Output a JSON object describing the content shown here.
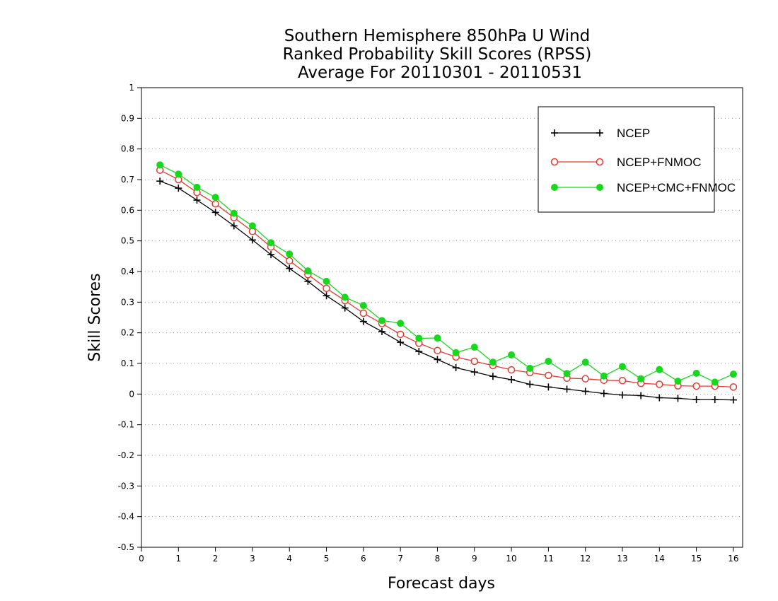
{
  "chart_data": {
    "type": "line",
    "title": [
      "Southern Hemisphere 850hPa U Wind",
      "Ranked Probability Skill Scores (RPSS)",
      "Average For 20110301 - 20110531"
    ],
    "xlabel": "Forecast days",
    "ylabel": "Skill Scores",
    "xlim": [
      0,
      16.25
    ],
    "ylim": [
      -0.5,
      1
    ],
    "xticks": [
      0,
      1,
      2,
      3,
      4,
      5,
      6,
      7,
      8,
      9,
      10,
      11,
      12,
      13,
      14,
      15,
      16
    ],
    "yticks": [
      -0.5,
      -0.4,
      -0.3,
      -0.2,
      -0.1,
      0,
      0.1,
      0.2,
      0.3,
      0.4,
      0.5,
      0.6,
      0.7,
      0.8,
      0.9,
      1
    ],
    "ytick_labels": [
      "-0.5",
      "-0.4",
      "-0.3",
      "-0.2",
      "-0.1",
      "0",
      "0.1",
      "0.2",
      "0.3",
      "0.4",
      "0.5",
      "0.6",
      "0.7",
      "0.8",
      "0.9",
      "1"
    ],
    "grid": "horizontal-dotted",
    "legend_position": "top-right",
    "x": [
      0.5,
      1,
      1.5,
      2,
      2.5,
      3,
      3.5,
      4,
      4.5,
      5,
      5.5,
      6,
      6.5,
      7,
      7.5,
      8,
      8.5,
      9,
      9.5,
      10,
      10.5,
      11,
      11.5,
      12,
      12.5,
      13,
      13.5,
      14,
      14.5,
      15,
      15.5,
      16
    ],
    "series": [
      {
        "name": "NCEP",
        "color": "#000000",
        "marker": "plus",
        "values": [
          0.695,
          0.672,
          0.633,
          0.593,
          0.549,
          0.503,
          0.455,
          0.41,
          0.368,
          0.321,
          0.281,
          0.237,
          0.204,
          0.169,
          0.139,
          0.113,
          0.086,
          0.072,
          0.058,
          0.047,
          0.032,
          0.023,
          0.016,
          0.009,
          0.002,
          -0.003,
          -0.005,
          -0.012,
          -0.014,
          -0.018,
          -0.018,
          -0.019
        ]
      },
      {
        "name": "NCEP+FNMOC",
        "color": "#e8392e",
        "marker": "open-circle",
        "values": [
          0.731,
          0.7,
          0.658,
          0.621,
          0.576,
          0.531,
          0.48,
          0.435,
          0.39,
          0.345,
          0.305,
          0.264,
          0.23,
          0.195,
          0.166,
          0.142,
          0.121,
          0.107,
          0.093,
          0.079,
          0.07,
          0.061,
          0.052,
          0.05,
          0.045,
          0.044,
          0.035,
          0.032,
          0.027,
          0.026,
          0.026,
          0.023
        ]
      },
      {
        "name": "NCEP+CMC+FNMOC",
        "color": "#17d81d",
        "marker": "filled-circle",
        "values": [
          0.748,
          0.718,
          0.675,
          0.642,
          0.59,
          0.549,
          0.494,
          0.457,
          0.402,
          0.368,
          0.316,
          0.289,
          0.24,
          0.231,
          0.182,
          0.183,
          0.135,
          0.153,
          0.104,
          0.128,
          0.084,
          0.107,
          0.067,
          0.104,
          0.059,
          0.09,
          0.05,
          0.08,
          0.042,
          0.068,
          0.039,
          0.065
        ]
      }
    ]
  }
}
